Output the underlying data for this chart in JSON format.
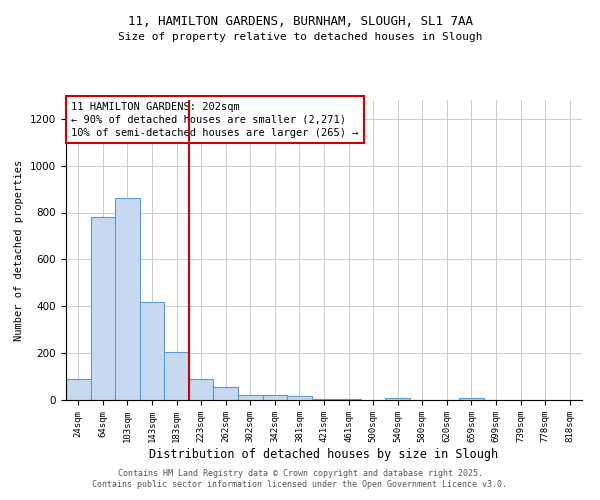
{
  "title1": "11, HAMILTON GARDENS, BURNHAM, SLOUGH, SL1 7AA",
  "title2": "Size of property relative to detached houses in Slough",
  "xlabel": "Distribution of detached houses by size in Slough",
  "ylabel": "Number of detached properties",
  "categories": [
    "24sqm",
    "64sqm",
    "103sqm",
    "143sqm",
    "183sqm",
    "223sqm",
    "262sqm",
    "302sqm",
    "342sqm",
    "381sqm",
    "421sqm",
    "461sqm",
    "500sqm",
    "540sqm",
    "580sqm",
    "620sqm",
    "659sqm",
    "699sqm",
    "739sqm",
    "778sqm",
    "818sqm"
  ],
  "values": [
    90,
    780,
    860,
    420,
    205,
    90,
    55,
    20,
    20,
    15,
    5,
    3,
    1,
    10,
    1,
    1,
    10,
    1,
    1,
    1,
    1
  ],
  "bar_color": "#c6d9f0",
  "bar_edge_color": "#5b9bd5",
  "red_line_x": 4.5,
  "red_line_color": "#cc0000",
  "annotation_text": "11 HAMILTON GARDENS: 202sqm\n← 90% of detached houses are smaller (2,271)\n10% of semi-detached houses are larger (265) →",
  "annotation_box_color": "#ffffff",
  "annotation_box_edge_color": "#cc0000",
  "ylim": [
    0,
    1280
  ],
  "yticks": [
    0,
    200,
    400,
    600,
    800,
    1000,
    1200
  ],
  "footer1": "Contains HM Land Registry data © Crown copyright and database right 2025.",
  "footer2": "Contains public sector information licensed under the Open Government Licence v3.0.",
  "background_color": "#ffffff",
  "grid_color": "#cccccc"
}
